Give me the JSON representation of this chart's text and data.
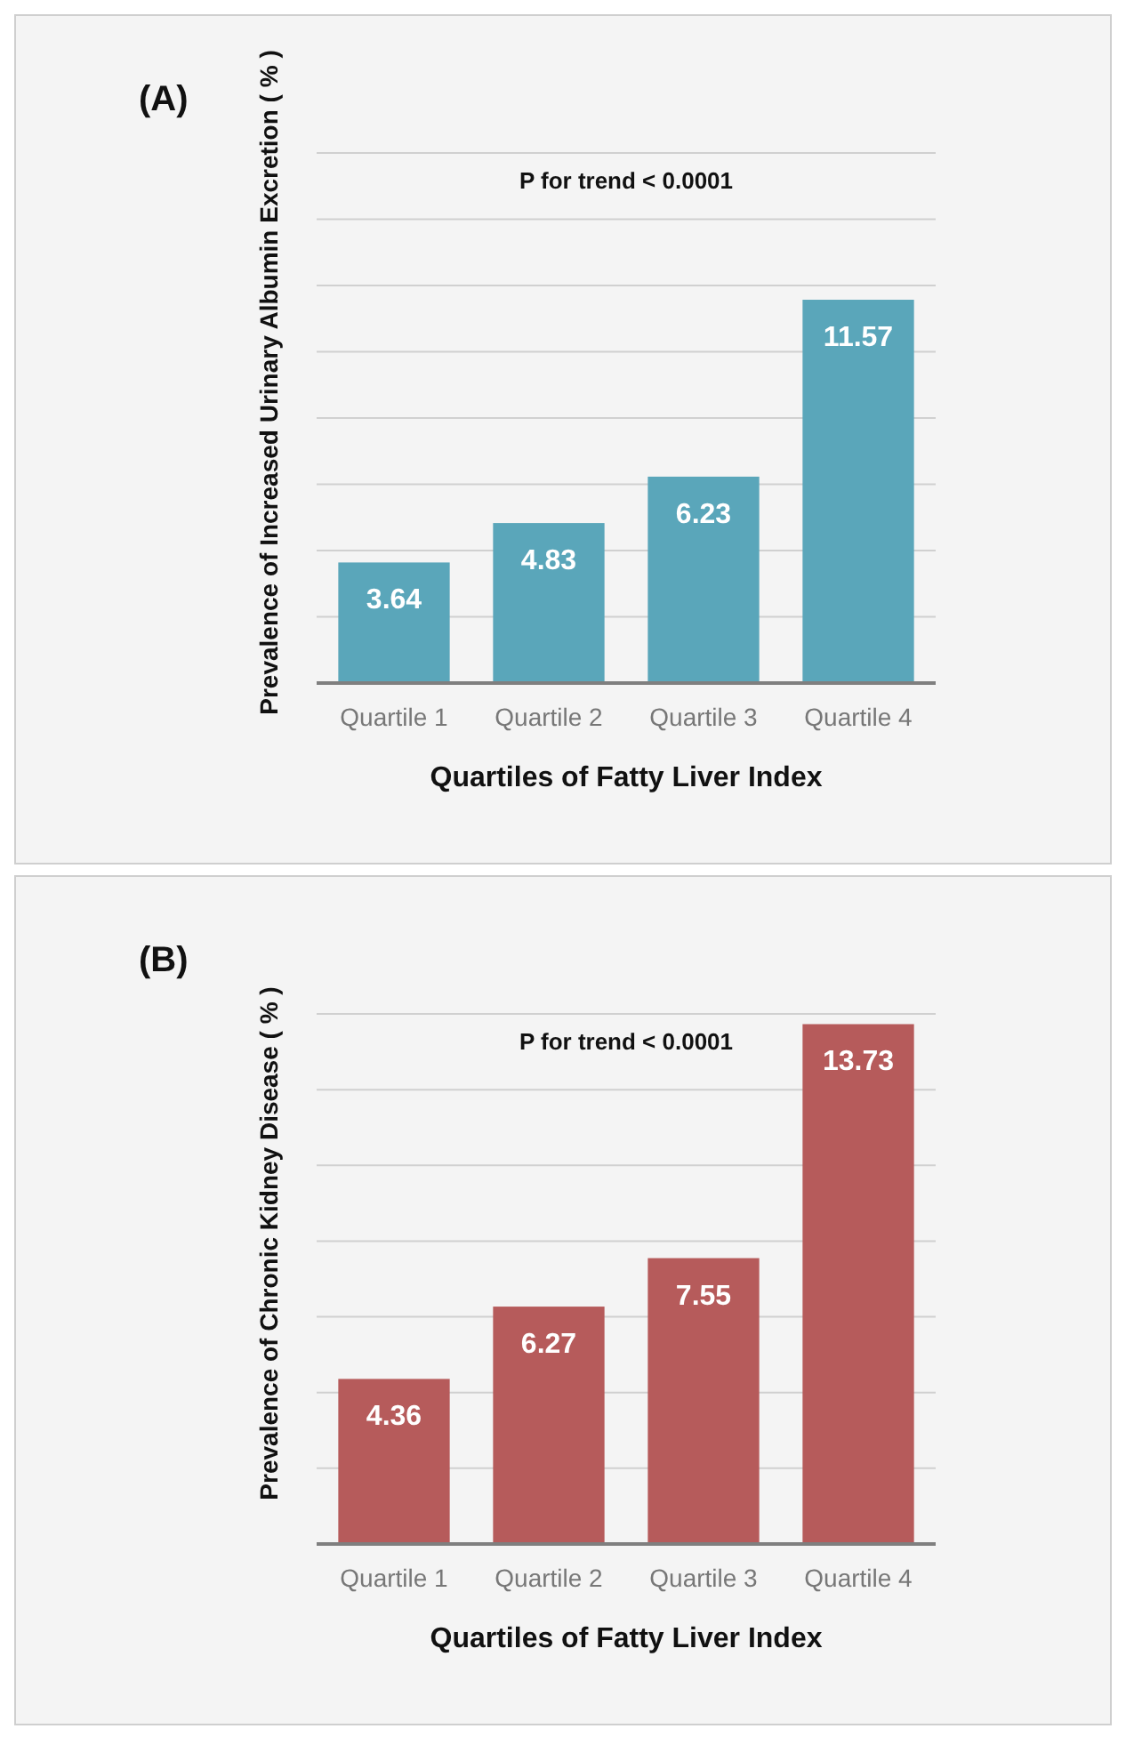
{
  "chart_data": [
    {
      "type": "bar",
      "title": "(A)",
      "xlabel": "Quartiles of Fatty Liver Index",
      "ylabel": "Prevalence of Increased Urinary Albumin Excretion ( % )",
      "categories": [
        "Quartile 1",
        "Quartile 2",
        "Quartile 3",
        "Quartile 4"
      ],
      "values": [
        3.64,
        4.83,
        6.23,
        11.57
      ],
      "color": "#5aa6ba",
      "ylim": [
        0,
        16
      ],
      "yticks": [
        {
          "value": 0,
          "label": null
        },
        {
          "value": 2,
          "label": null
        },
        {
          "value": 4,
          "label": null
        },
        {
          "value": 6,
          "label": null
        },
        {
          "value": 8,
          "label": null
        },
        {
          "value": 10,
          "label": null
        },
        {
          "value": 12,
          "label": null
        },
        {
          "value": 14,
          "label": null
        },
        {
          "value": 16,
          "label": null
        }
      ],
      "grid": "y",
      "tick_labels": "x",
      "data_labels": true,
      "annotations": [
        "P for trend < 0.0001"
      ]
    },
    {
      "type": "bar",
      "title": "(B)",
      "xlabel": "Quartiles of Fatty Liver Index",
      "ylabel": "Prevalence of Chronic Kidney Disease  ( % )",
      "categories": [
        "Quartile 1",
        "Quartile 2",
        "Quartile 3",
        "Quartile 4"
      ],
      "values": [
        4.36,
        6.27,
        7.55,
        13.73
      ],
      "color": "#b65b5b",
      "ylim": [
        0,
        14
      ],
      "yticks": [
        {
          "value": 0,
          "label": null
        },
        {
          "value": 2,
          "label": null
        },
        {
          "value": 4,
          "label": null
        },
        {
          "value": 6,
          "label": null
        },
        {
          "value": 8,
          "label": null
        },
        {
          "value": 10,
          "label": null
        },
        {
          "value": 12,
          "label": null
        },
        {
          "value": 14,
          "label": null
        }
      ],
      "grid": "y",
      "tick_labels": "x",
      "data_labels": true,
      "annotations": [
        "P for trend < 0.0001"
      ]
    }
  ]
}
